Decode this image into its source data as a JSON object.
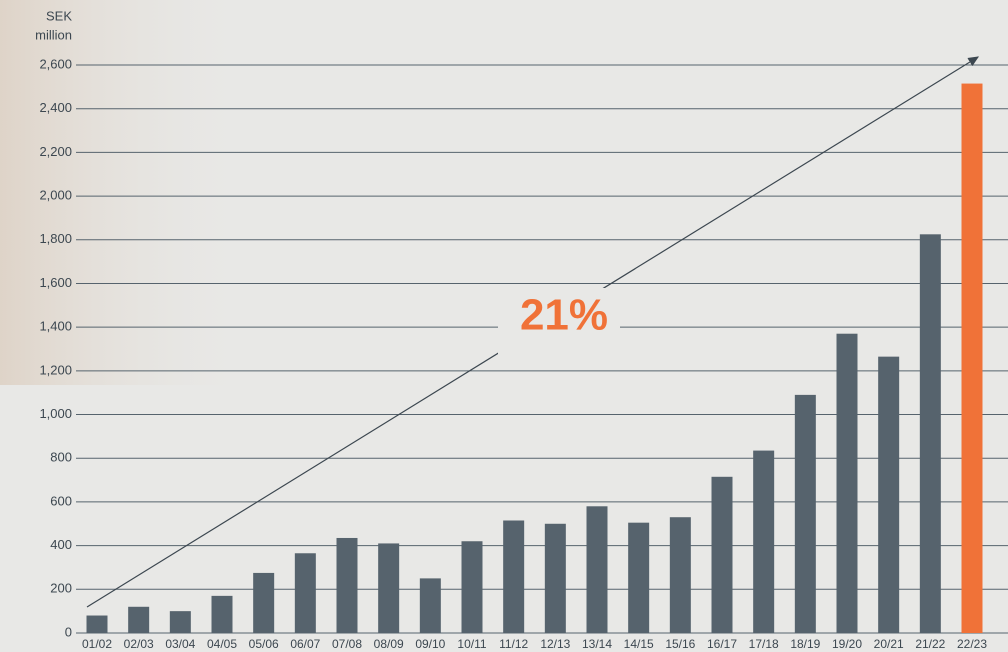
{
  "chart_data": {
    "type": "bar",
    "ylabel": [
      "SEK",
      "million"
    ],
    "annotation": "21%",
    "categories": [
      "01/02",
      "02/03",
      "03/04",
      "04/05",
      "05/06",
      "06/07",
      "07/08",
      "08/09",
      "09/10",
      "10/11",
      "11/12",
      "12/13",
      "13/14",
      "14/15",
      "15/16",
      "16/17",
      "17/18",
      "18/19",
      "19/20",
      "20/21",
      "21/22",
      "22/23"
    ],
    "values": [
      80,
      120,
      100,
      170,
      275,
      365,
      435,
      410,
      250,
      420,
      515,
      500,
      580,
      505,
      530,
      715,
      835,
      1090,
      1370,
      1265,
      1825,
      2515
    ],
    "colors": [
      "#56636d",
      "#56636d",
      "#56636d",
      "#56636d",
      "#56636d",
      "#56636d",
      "#56636d",
      "#56636d",
      "#56636d",
      "#56636d",
      "#56636d",
      "#56636d",
      "#56636d",
      "#56636d",
      "#56636d",
      "#56636d",
      "#56636d",
      "#56636d",
      "#56636d",
      "#56636d",
      "#56636d",
      "#f07238"
    ],
    "ylim": [
      0,
      2600
    ],
    "yticks": [
      0,
      200,
      400,
      600,
      800,
      {
        "value": 1000,
        "label": "1,000"
      },
      {
        "value": 1200,
        "label": "1,200"
      },
      {
        "value": 1400,
        "label": "1,400"
      },
      {
        "value": 1600,
        "label": "1,600"
      },
      {
        "value": 1800,
        "label": "1,800"
      },
      {
        "value": 2000,
        "label": "2,000"
      },
      {
        "value": 2200,
        "label": "2,200"
      },
      {
        "value": 2400,
        "label": "2,400"
      },
      {
        "value": 2600,
        "label": "2,600"
      }
    ],
    "grid": true
  }
}
